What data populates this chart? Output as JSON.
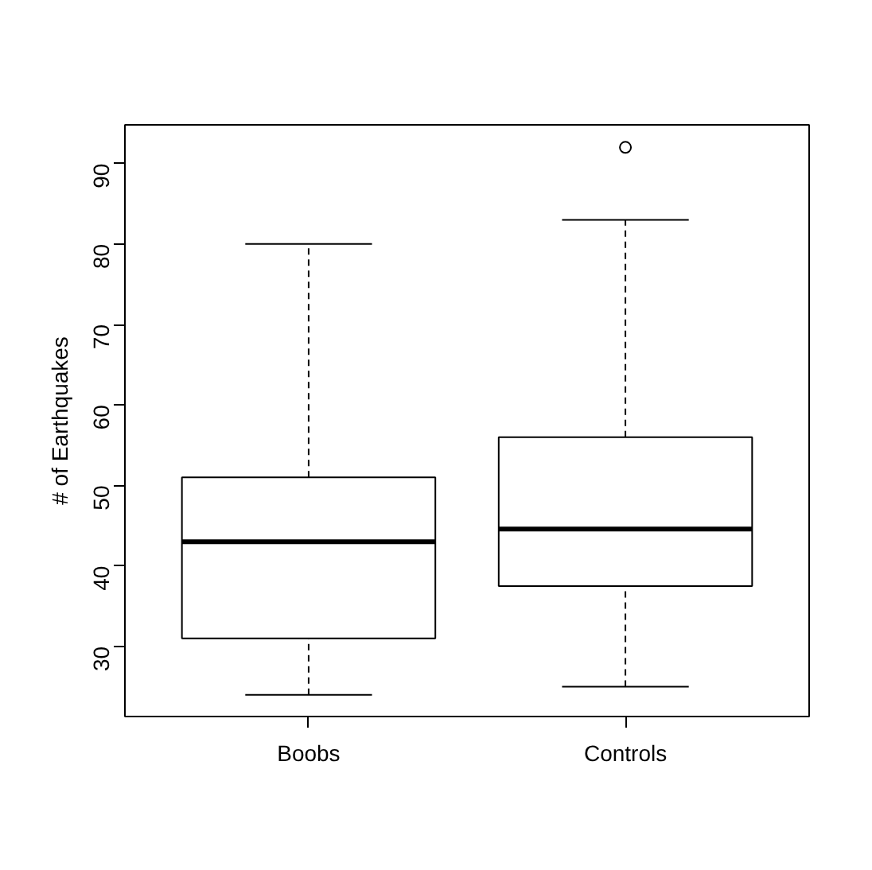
{
  "chart_data": {
    "type": "box",
    "ylabel": "# of Earthquakes",
    "categories": [
      "Boobs",
      "Controls"
    ],
    "boxes": [
      {
        "low": 24,
        "q1": 31,
        "median": 43,
        "q3": 51,
        "high": 80
      },
      {
        "low": 25,
        "q1": 37.5,
        "median": 44.6,
        "q3": 56,
        "high": 83,
        "outliers": [
          92
        ]
      }
    ],
    "ylim": [
      21.3,
      94.8
    ],
    "yticks": [
      30,
      40,
      50,
      60,
      70,
      80,
      90
    ],
    "grid": false
  }
}
